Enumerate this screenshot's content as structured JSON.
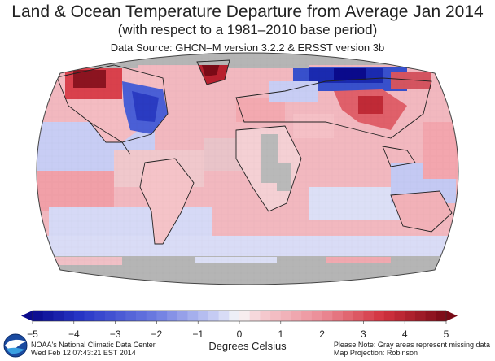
{
  "title": "Land & Ocean Temperature Departure from Average Jan 2014",
  "subtitle": "(with respect to a 1981–2010 base period)",
  "source": "Data Source: GHCN–M version 3.2.2 & ERSST version 3b",
  "colorbar": {
    "ticks": [
      "−5",
      "−4",
      "−3",
      "−2",
      "−1",
      "0",
      "1",
      "2",
      "3",
      "4",
      "5"
    ],
    "units": "Degrees Celsius",
    "colors": {
      "cold_extreme": "#0a0a8c",
      "cold": "#3a4fd0",
      "cool": "#9aa6ee",
      "neutral": "#f4f4f4",
      "warm": "#f3a5ad",
      "hot": "#d83a44",
      "hot_extreme": "#7a0a16",
      "missing": "#b5b5b5"
    }
  },
  "footer": {
    "org_line1": "NOAA's National Climatic Data Center",
    "org_line2": "Wed Feb 12 07:43:21 EST 2014",
    "note_line1": "Please Note: Gray areas represent missing data",
    "note_line2": "Map Projection: Robinson"
  },
  "logo": "noaa-logo"
}
